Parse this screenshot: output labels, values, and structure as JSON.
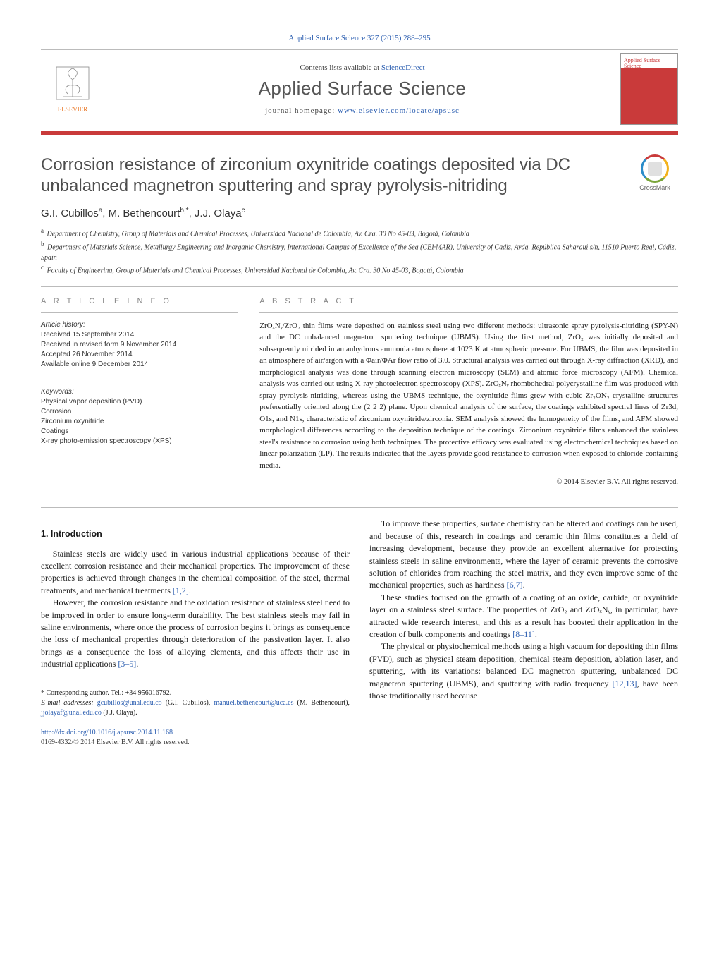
{
  "header": {
    "journal_ref": "Applied Surface Science 327 (2015) 288–295",
    "contents_prefix": "Contents lists available at ",
    "contents_link": "ScienceDirect",
    "journal_title": "Applied Surface Science",
    "homepage_prefix": "journal homepage: ",
    "homepage_link": "www.elsevier.com/locate/apsusc",
    "publisher_logo": "ELSEVIER",
    "cover_title": "Applied Surface Science",
    "accent_color": "#c93a3a"
  },
  "crossmark": {
    "label": "CrossMark"
  },
  "article": {
    "title": "Corrosion resistance of zirconium oxynitride coatings deposited via DC unbalanced magnetron sputtering and spray pyrolysis-nitriding",
    "authors_html": "G.I. Cubillos<sup>a</sup>, M. Bethencourt<sup>b,*</sup>, J.J. Olaya<sup>c</sup>",
    "affiliations": [
      {
        "key": "a",
        "text": "Department of Chemistry, Group of Materials and Chemical Processes, Universidad Nacional de Colombia, Av. Cra. 30 No 45-03, Bogotá, Colombia"
      },
      {
        "key": "b",
        "text": "Department of Materials Science, Metallurgy Engineering and Inorganic Chemistry, International Campus of Excellence of the Sea (CEI·MAR), University of Cadiz, Avda. República Saharaui s/n, 11510 Puerto Real, Cádiz, Spain"
      },
      {
        "key": "c",
        "text": "Faculty of Engineering, Group of Materials and Chemical Processes, Universidad Nacional de Colombia, Av. Cra. 30 No 45-03, Bogotá, Colombia"
      }
    ]
  },
  "article_info": {
    "heading": "A R T I C L E   I N F O",
    "history_label": "Article history:",
    "history": [
      "Received 15 September 2014",
      "Received in revised form 9 November 2014",
      "Accepted 26 November 2014",
      "Available online 9 December 2014"
    ],
    "keywords_label": "Keywords:",
    "keywords": [
      "Physical vapor deposition (PVD)",
      "Corrosion",
      "Zirconium oxynitride",
      "Coatings",
      "X-ray photo-emission spectroscopy (XPS)"
    ]
  },
  "abstract": {
    "heading": "A B S T R A C T",
    "text": "ZrOₓNᵧ/ZrO₂ thin films were deposited on stainless steel using two different methods: ultrasonic spray pyrolysis-nitriding (SPY-N) and the DC unbalanced magnetron sputtering technique (UBMS). Using the first method, ZrO₂ was initially deposited and subsequently nitrided in an anhydrous ammonia atmosphere at 1023 K at atmospheric pressure. For UBMS, the film was deposited in an atmosphere of air/argon with a Φair/ΦAr flow ratio of 3.0. Structural analysis was carried out through X-ray diffraction (XRD), and morphological analysis was done through scanning electron microscopy (SEM) and atomic force microscopy (AFM). Chemical analysis was carried out using X-ray photoelectron spectroscopy (XPS). ZrOₓNᵧ rhombohedral polycrystalline film was produced with spray pyrolysis-nitriding, whereas using the UBMS technique, the oxynitride films grew with cubic Zr₂ON₂ crystalline structures preferentially oriented along the (2 2 2) plane. Upon chemical analysis of the surface, the coatings exhibited spectral lines of Zr3d, O1s, and N1s, characteristic of zirconium oxynitride/zirconia. SEM analysis showed the homogeneity of the films, and AFM showed morphological differences according to the deposition technique of the coatings. Zirconium oxynitride films enhanced the stainless steel's resistance to corrosion using both techniques. The protective efficacy was evaluated using electrochemical techniques based on linear polarization (LP). The results indicated that the layers provide good resistance to corrosion when exposed to chloride-containing media.",
    "copyright": "© 2014 Elsevier B.V. All rights reserved."
  },
  "body": {
    "section_heading": "1.  Introduction",
    "left_paras": [
      "Stainless steels are widely used in various industrial applications because of their excellent corrosion resistance and their mechanical properties. The improvement of these properties is achieved through changes in the chemical composition of the steel, thermal treatments, and mechanical treatments [1,2].",
      "However, the corrosion resistance and the oxidation resistance of stainless steel need to be improved in order to ensure long-term durability. The best stainless steels may fail in saline environments, where once the process of corrosion begins it brings as consequence the loss of mechanical properties through deterioration of the passivation layer. It also brings as a consequence the loss of alloying elements, and this affects their use in industrial applications [3–5]."
    ],
    "right_paras": [
      "To improve these properties, surface chemistry can be altered and coatings can be used, and because of this, research in coatings and ceramic thin films constitutes a field of increasing development, because they provide an excellent alternative for protecting stainless steels in saline environments, where the layer of ceramic prevents the corrosive solution of chlorides from reaching the steel matrix, and they even improve some of the mechanical properties, such as hardness [6,7].",
      "These studies focused on the growth of a coating of an oxide, carbide, or oxynitride layer on a stainless steel surface. The properties of ZrO₂ and ZrOₓNᵧ, in particular, have attracted wide research interest, and this as a result has boosted their application in the creation of bulk components and coatings [8–11].",
      "The physical or physiochemical methods using a high vacuum for depositing thin films (PVD), such as physical steam deposition, chemical steam deposition, ablation laser, and sputtering, with its variations: balanced DC magnetron sputtering, unbalanced DC magnetron sputtering (UBMS), and sputtering with radio frequency [12,13], have been those traditionally used because"
    ],
    "ref_links": {
      "r12": "[1,2]",
      "r35": "[3–5]",
      "r67": "[6,7]",
      "r811": "[8–11]",
      "r1213": "[12,13]"
    }
  },
  "footnotes": {
    "corr_label": "* Corresponding author. Tel.: +34 956016792.",
    "email_label": "E-mail addresses:",
    "emails": [
      {
        "addr": "gcubillos@unal.edu.co",
        "who": "(G.I. Cubillos),"
      },
      {
        "addr": "manuel.bethencourt@uca.es",
        "who": "(M. Bethencourt),"
      },
      {
        "addr": "jjolayaf@unal.edu.co",
        "who": "(J.J. Olaya)."
      }
    ]
  },
  "footer": {
    "doi": "http://dx.doi.org/10.1016/j.apsusc.2014.11.168",
    "issn_copy": "0169-4332/© 2014 Elsevier B.V. All rights reserved."
  }
}
